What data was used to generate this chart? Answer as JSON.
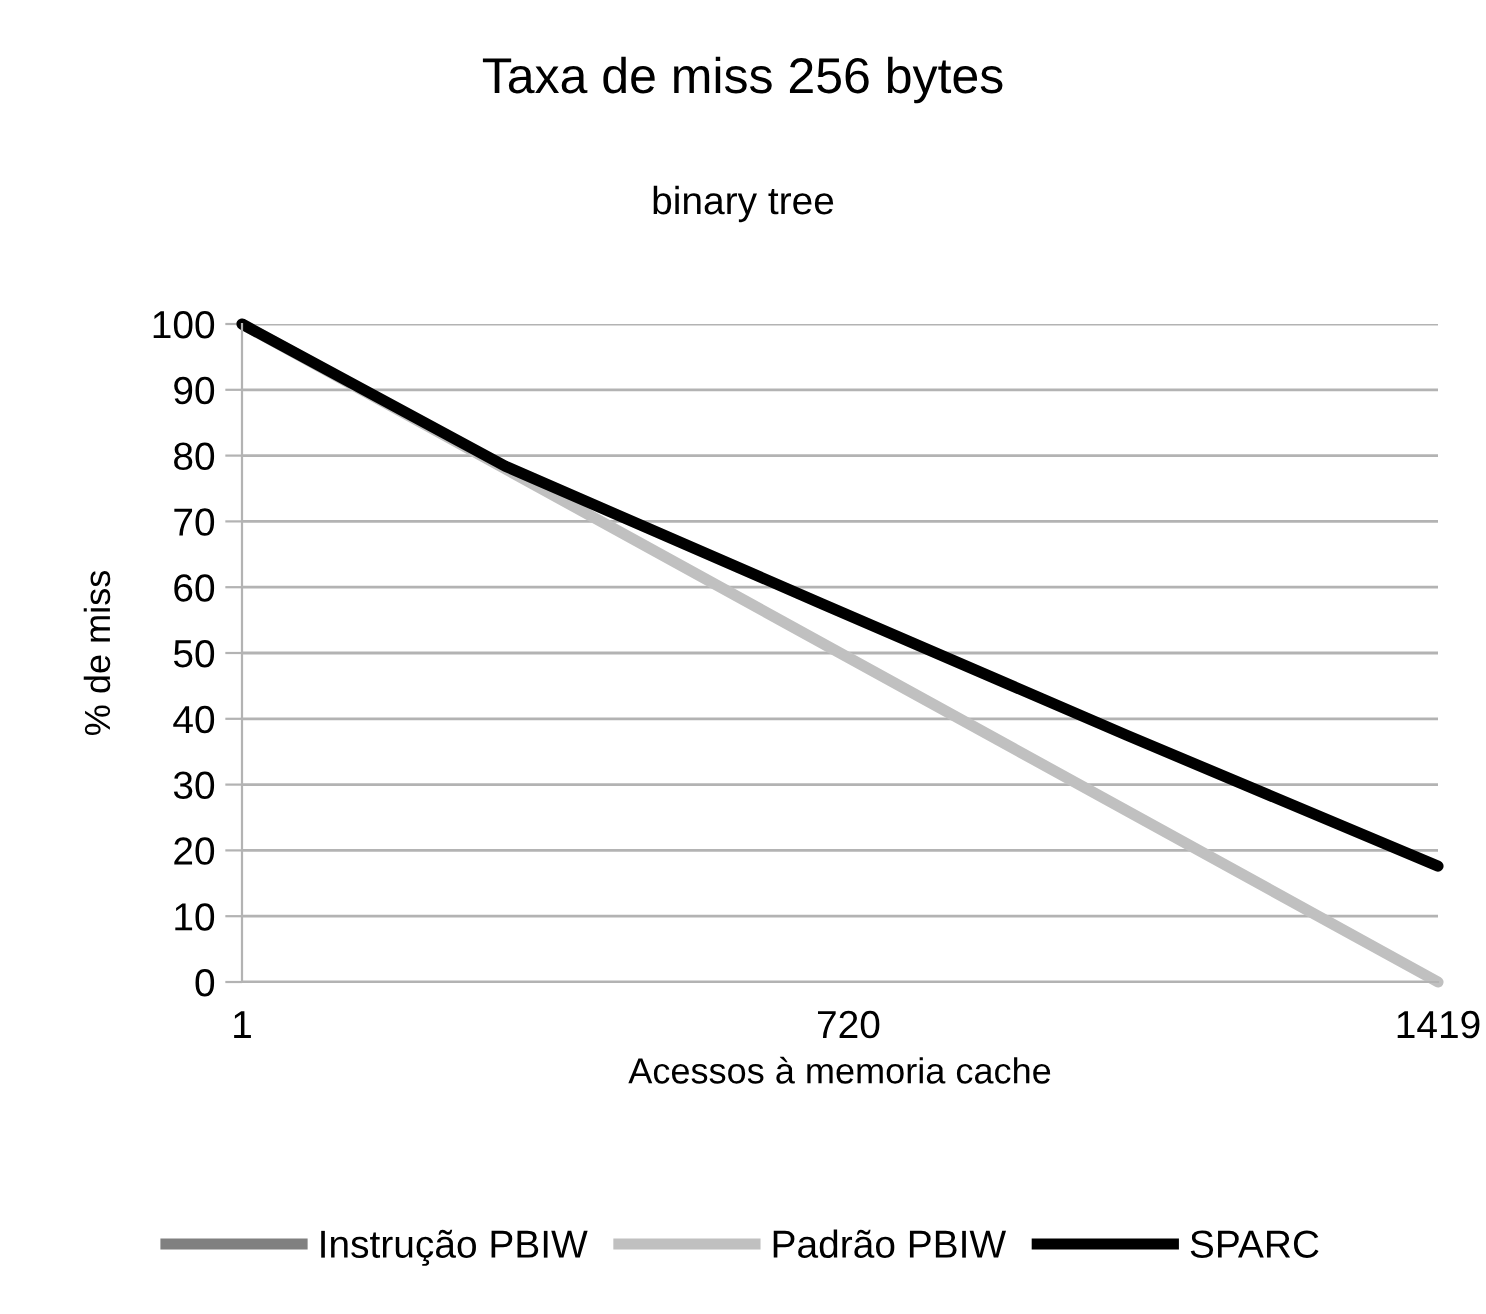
{
  "chart_data": {
    "type": "line",
    "title": "Taxa de miss 256 bytes",
    "subtitle": "binary tree",
    "xlabel": "Acessos à memoria cache",
    "ylabel": "% de miss",
    "x": [
      1,
      313,
      688,
      1050,
      1419
    ],
    "series": [
      {
        "name": "Instrução PBIW",
        "color": "#808080",
        "values": [
          null,
          null,
          null,
          null,
          null
        ]
      },
      {
        "name": "Padrão PBIW",
        "color": "#c0c0c0",
        "x": [
          1,
          1419
        ],
        "values": [
          100,
          0
        ]
      },
      {
        "name": "SPARC",
        "color": "#000000",
        "values": [
          100,
          78.4,
          57.5,
          37.5,
          17.6
        ]
      }
    ],
    "xlim": [
      1,
      1419
    ],
    "xticks": [
      1,
      720,
      1419
    ],
    "ylim": [
      0,
      100
    ],
    "yticks": [
      0,
      10,
      20,
      30,
      40,
      50,
      60,
      70,
      80,
      90,
      100
    ],
    "grid": "y",
    "legend": "bottom",
    "marker": "none",
    "line_style": "solid"
  }
}
